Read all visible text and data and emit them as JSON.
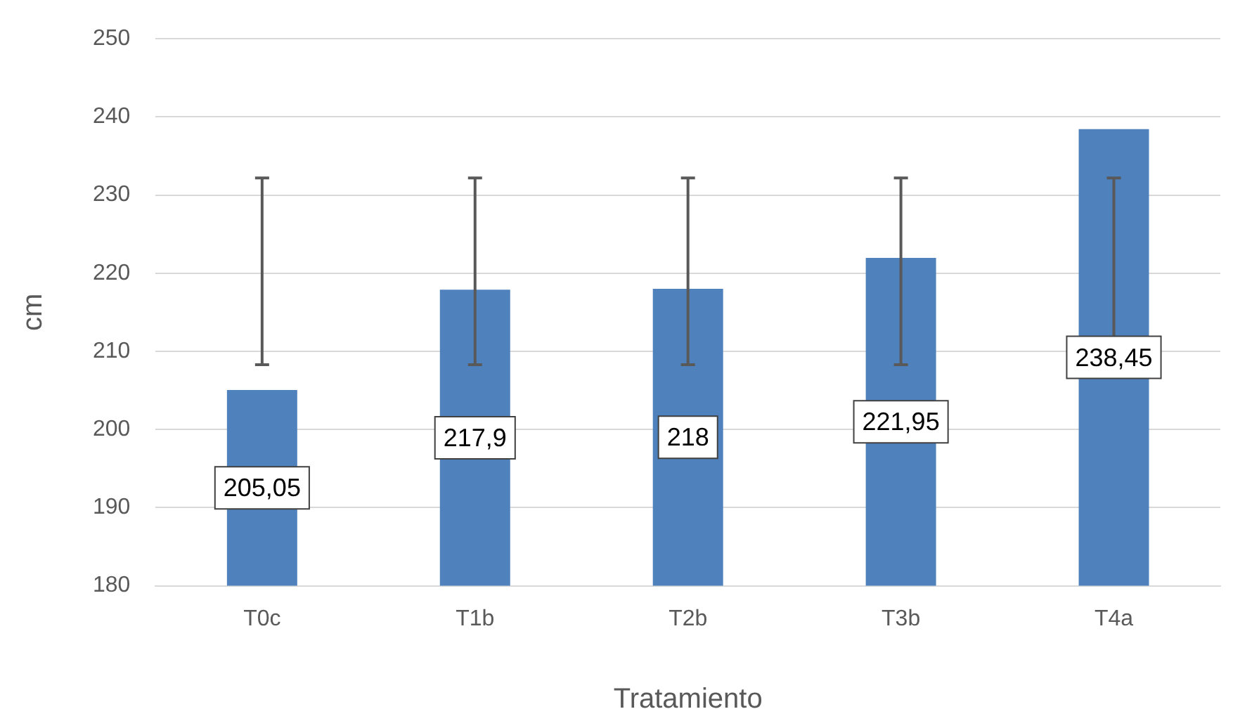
{
  "chart_data": {
    "type": "bar",
    "xlabel": "Tratamiento",
    "ylabel": "cm",
    "categories": [
      "T0c",
      "T1b",
      "T2b",
      "T3b",
      "T4a"
    ],
    "values": [
      205.05,
      217.9,
      218,
      221.95,
      238.45
    ],
    "value_labels": [
      "205,05",
      "217,9",
      "218",
      "221,95",
      "238,45"
    ],
    "errors": [
      [
        208.3,
        232.2
      ],
      [
        208.3,
        232.2
      ],
      [
        208.3,
        232.2
      ],
      [
        208.3,
        232.2
      ],
      [
        208.3,
        232.2
      ]
    ],
    "color": "#4f81bd",
    "ylim": [
      180,
      250
    ],
    "yticks": [
      180,
      190,
      200,
      210,
      220,
      230,
      240,
      250
    ],
    "grid": "y",
    "legend": false
  }
}
